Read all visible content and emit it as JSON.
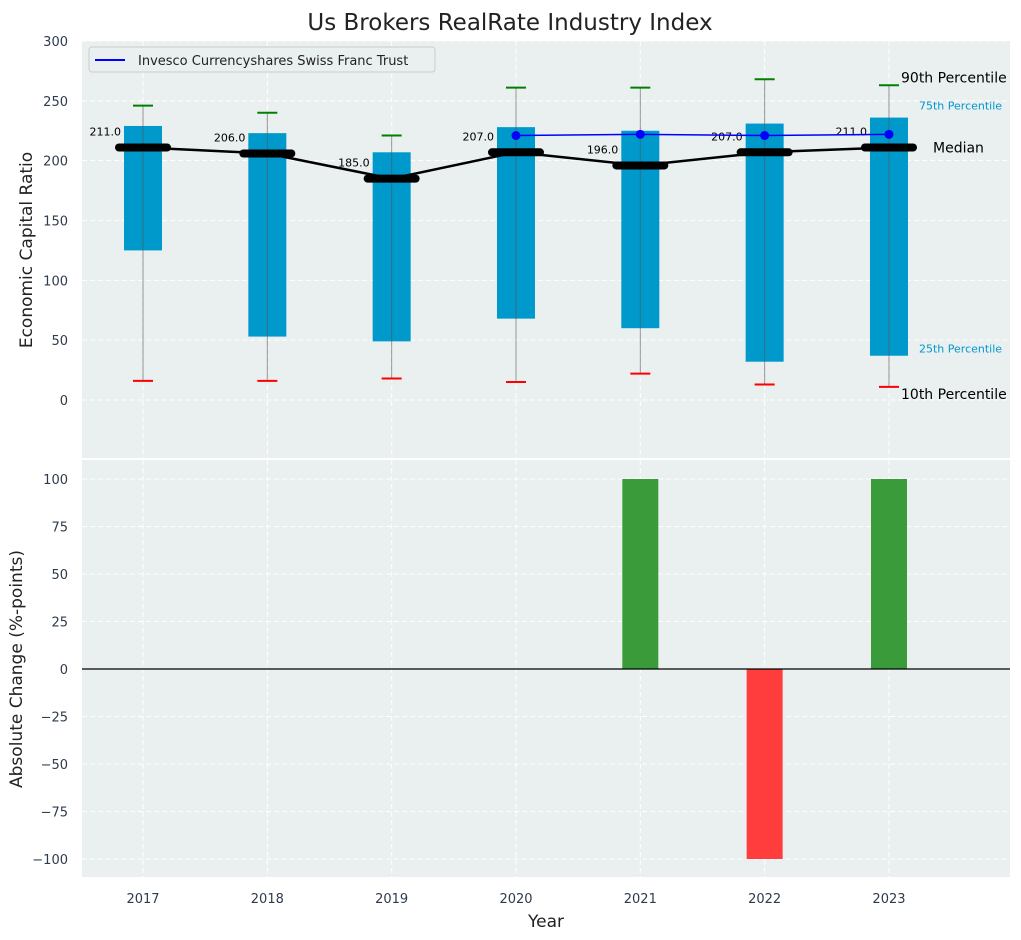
{
  "chart_data": [
    {
      "type": "bar",
      "title": "Us Brokers RealRate Industry Index",
      "ylabel": "Economic Capital Ratio",
      "ylim": [
        -40,
        300
      ],
      "yticks": [
        0,
        50,
        100,
        150,
        200,
        250,
        300
      ],
      "categories": [
        "2017",
        "2018",
        "2019",
        "2020",
        "2021",
        "2022",
        "2023"
      ],
      "p10": [
        16,
        16,
        18,
        15,
        22,
        13,
        11
      ],
      "p25": [
        125,
        53,
        49,
        68,
        60,
        32,
        37
      ],
      "median": [
        211,
        206,
        185,
        207,
        196,
        207,
        211
      ],
      "median_labels": [
        "211.0",
        "206.0",
        "185.0",
        "207.0",
        "196.0",
        "207.0",
        "211.0"
      ],
      "p75": [
        229,
        223,
        207,
        228,
        225,
        231,
        236
      ],
      "p90": [
        246,
        240,
        221,
        261,
        261,
        268,
        263
      ],
      "legend": {
        "label": "Invesco Currencyshares Swiss Franc Trust",
        "placement": "top-left"
      },
      "series": [
        {
          "name": "Invesco Currencyshares Swiss Franc Trust",
          "x": [
            "2020",
            "2021",
            "2022",
            "2023"
          ],
          "values": [
            221,
            222,
            221,
            222
          ],
          "color": "#0000ff"
        }
      ],
      "annotations": {
        "p90": "90th Percentile",
        "p75": "75th Percentile",
        "median": "Median",
        "p25": "25th Percentile",
        "p10": "10th Percentile"
      },
      "colors": {
        "box": "#0099cc",
        "p90": "#008000",
        "p10": "#ff0000",
        "median": "#000000",
        "bg": "#eaeff0"
      }
    },
    {
      "type": "bar",
      "xlabel": "Year",
      "ylabel": "Absolute Change (%-points)",
      "ylim": [
        -110,
        110
      ],
      "yticks": [
        -100,
        -75,
        -50,
        -25,
        0,
        25,
        50,
        75,
        100
      ],
      "ytick_labels": [
        "−100",
        "−75",
        "−50",
        "−25",
        "0",
        "25",
        "50",
        "75",
        "100"
      ],
      "categories": [
        "2017",
        "2018",
        "2019",
        "2020",
        "2021",
        "2022",
        "2023"
      ],
      "values": [
        0,
        0,
        0,
        0,
        100,
        -100,
        100
      ],
      "colors": {
        "pos": "#3a9b3a",
        "neg": "#ff3d3d"
      }
    }
  ]
}
